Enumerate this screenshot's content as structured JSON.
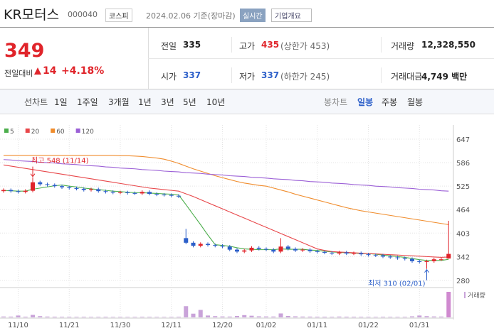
{
  "header": {
    "title": "KR모터스",
    "code": "000040",
    "market": "코스피",
    "date": "2024.02.06 기준(장마감)",
    "realtime": "실시간",
    "company_info": "기업개요"
  },
  "quote": {
    "price": "349",
    "change_label": "전일대비",
    "change": "14",
    "change_pct": "+4.18%"
  },
  "stats": [
    [
      {
        "label": "전일",
        "value": "335"
      },
      {
        "label": "고가",
        "value": "435",
        "sub": "(상한가 453)"
      },
      {
        "label": "거래량",
        "value": "12,328,550"
      }
    ],
    [
      {
        "label": "시가",
        "value": "337"
      },
      {
        "label": "저가",
        "value": "337",
        "sub": "(하한가 245)"
      },
      {
        "label": "거래대금",
        "value": "4,749 백만"
      }
    ]
  ],
  "tabs": {
    "line": {
      "label": "선차트",
      "items": [
        "1일",
        "1주일",
        "3개월",
        "1년",
        "3년",
        "5년",
        "10년"
      ]
    },
    "candle": {
      "label": "봉차트",
      "items": [
        "일봉",
        "주봉",
        "월봉"
      ]
    }
  },
  "chart_data": {
    "type": "candlestick",
    "up_color": "#e0242a",
    "down_color": "#2c5fc9",
    "grid": true,
    "categories": [
      null,
      null,
      "11/10",
      null,
      null,
      null,
      null,
      null,
      null,
      "11/21",
      null,
      null,
      null,
      null,
      null,
      null,
      "11/30",
      null,
      null,
      null,
      null,
      null,
      null,
      "12/11",
      null,
      null,
      null,
      null,
      null,
      null,
      "12/20",
      null,
      null,
      null,
      null,
      null,
      "01/02",
      null,
      null,
      null,
      null,
      null,
      null,
      "01/11",
      null,
      null,
      null,
      null,
      null,
      null,
      "01/22",
      null,
      null,
      null,
      null,
      null,
      null,
      "01/31",
      null,
      null,
      null,
      null
    ],
    "open": [
      512,
      515,
      512,
      510,
      513,
      535,
      530,
      528,
      525,
      522,
      520,
      518,
      515,
      517,
      512,
      510,
      508,
      509,
      507,
      506,
      510,
      505,
      503,
      502,
      500,
      390,
      378,
      370,
      375,
      372,
      370,
      368,
      360,
      355,
      358,
      365,
      362,
      360,
      355,
      368,
      362,
      358,
      360,
      356,
      354,
      352,
      350,
      353,
      350,
      351,
      348,
      346,
      345,
      342,
      340,
      338,
      336,
      330,
      328,
      330,
      335,
      337
    ],
    "high": [
      519,
      519,
      516,
      517,
      548,
      539,
      534,
      532,
      529,
      526,
      524,
      522,
      521,
      521,
      516,
      514,
      513,
      513,
      511,
      514,
      514,
      509,
      507,
      506,
      504,
      414,
      382,
      379,
      379,
      376,
      374,
      372,
      364,
      362,
      369,
      369,
      366,
      364,
      390,
      372,
      366,
      364,
      364,
      360,
      358,
      356,
      357,
      357,
      355,
      355,
      352,
      350,
      349,
      346,
      344,
      342,
      340,
      334,
      334,
      339,
      339,
      435
    ],
    "low": [
      508,
      508,
      506,
      506,
      509,
      526,
      524,
      521,
      518,
      516,
      514,
      511,
      511,
      508,
      506,
      504,
      504,
      503,
      502,
      502,
      501,
      499,
      498,
      496,
      494,
      374,
      366,
      366,
      368,
      366,
      364,
      356,
      351,
      351,
      354,
      358,
      356,
      351,
      351,
      358,
      354,
      354,
      352,
      350,
      348,
      346,
      346,
      346,
      346,
      344,
      342,
      341,
      338,
      336,
      334,
      332,
      326,
      324,
      310,
      326,
      331,
      337
    ],
    "close": [
      515,
      512,
      510,
      513,
      535,
      530,
      528,
      525,
      522,
      520,
      518,
      515,
      517,
      512,
      510,
      508,
      509,
      507,
      506,
      510,
      505,
      503,
      502,
      500,
      498,
      378,
      370,
      375,
      372,
      370,
      368,
      360,
      355,
      358,
      365,
      362,
      360,
      355,
      368,
      362,
      358,
      360,
      356,
      354,
      352,
      350,
      353,
      350,
      351,
      348,
      346,
      345,
      342,
      340,
      338,
      336,
      330,
      328,
      330,
      335,
      335,
      349
    ],
    "volume_label": "거래량",
    "volume": [
      420000,
      380000,
      900000,
      350000,
      1200000,
      600000,
      400000,
      350000,
      300000,
      320000,
      280000,
      300000,
      260000,
      280000,
      300000,
      250000,
      270000,
      240000,
      260000,
      300000,
      280000,
      250000,
      240000,
      260000,
      300000,
      5400000,
      1800000,
      3600000,
      900000,
      600000,
      450000,
      400000,
      700000,
      1100000,
      800000,
      500000,
      450000,
      420000,
      1900000,
      700000,
      500000,
      400000,
      380000,
      350000,
      330000,
      300000,
      400000,
      350000,
      320000,
      300000,
      280000,
      260000,
      300000,
      280000,
      260000,
      270000,
      500000,
      900000,
      600000,
      450000,
      400000,
      12328550
    ],
    "series": [
      {
        "name": "5",
        "color": "#4cae4c",
        "values": [
          514,
          513,
          512,
          512,
          517,
          520,
          523,
          526,
          528,
          525,
          523,
          520,
          518,
          516,
          514,
          512,
          511,
          509,
          508,
          508,
          507,
          506,
          505,
          504,
          502,
          477,
          451,
          425,
          398,
          373,
          371,
          369,
          365,
          362,
          361,
          360,
          360,
          360,
          362,
          361,
          361,
          361,
          359,
          358,
          356,
          354,
          353,
          352,
          351,
          350,
          350,
          348,
          346,
          344,
          342,
          340,
          337,
          334,
          332,
          332,
          332,
          335
        ]
      },
      {
        "name": "20",
        "color": "#e8474a",
        "values": [
          580,
          577,
          574,
          571,
          568,
          565,
          562,
          559,
          556,
          553,
          550,
          547,
          544,
          541,
          538,
          535,
          532,
          529,
          526,
          523,
          520,
          518,
          516,
          514,
          512,
          505,
          498,
          490,
          482,
          474,
          466,
          458,
          450,
          442,
          434,
          426,
          418,
          410,
          402,
          394,
          386,
          378,
          370,
          362,
          358,
          355,
          354,
          353,
          352,
          351,
          350,
          349,
          348,
          347,
          346,
          345,
          344,
          343,
          342,
          341,
          340,
          341
        ]
      },
      {
        "name": "60",
        "color": "#f08c2c",
        "values": [
          605,
          605,
          605,
          605,
          605,
          605,
          605,
          605,
          605,
          605,
          605,
          605,
          605,
          605,
          605,
          605,
          604,
          604,
          603,
          602,
          600,
          598,
          595,
          590,
          584,
          577,
          570,
          564,
          558,
          552,
          547,
          542,
          537,
          533,
          530,
          527,
          525,
          520,
          515,
          510,
          504,
          499,
          494,
          489,
          484,
          479,
          474,
          469,
          465,
          461,
          458,
          455,
          452,
          449,
          446,
          443,
          440,
          437,
          434,
          431,
          428,
          425
        ]
      },
      {
        "name": "120",
        "color": "#9b5fd6",
        "values": [
          594,
          593,
          591,
          590,
          589,
          587,
          586,
          585,
          583,
          582,
          581,
          579,
          578,
          577,
          575,
          574,
          572,
          571,
          570,
          568,
          567,
          566,
          564,
          563,
          562,
          560,
          559,
          558,
          556,
          555,
          554,
          552,
          551,
          550,
          548,
          547,
          546,
          544,
          543,
          542,
          540,
          539,
          537,
          536,
          535,
          533,
          532,
          531,
          529,
          528,
          527,
          525,
          524,
          523,
          521,
          520,
          519,
          517,
          516,
          515,
          513,
          512
        ]
      }
    ],
    "ylim": [
      280,
      647
    ],
    "yticks": [
      280,
      342,
      403,
      464,
      525,
      586,
      647
    ],
    "annotations": [
      {
        "text": "최고 548 (11/14)"
      },
      {
        "text": "최저 310 (02/01)"
      }
    ]
  }
}
